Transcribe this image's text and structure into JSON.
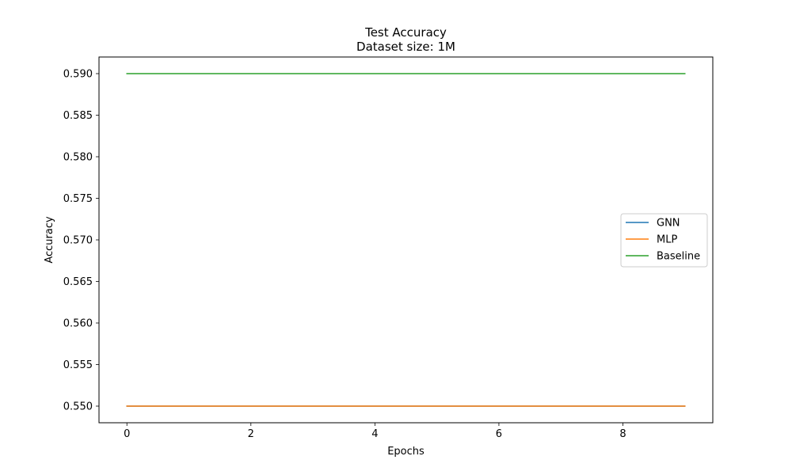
{
  "chart_data": {
    "type": "line",
    "title": "Test Accuracy",
    "subtitle": "Dataset size: 1M",
    "xlabel": "Epochs",
    "ylabel": "Accuracy",
    "xlim": [
      -0.45,
      9.45
    ],
    "ylim": [
      0.548,
      0.592
    ],
    "x_ticks": [
      0,
      2,
      4,
      6,
      8
    ],
    "x_tick_labels": [
      "0",
      "2",
      "4",
      "6",
      "8"
    ],
    "y_ticks": [
      0.55,
      0.555,
      0.56,
      0.565,
      0.57,
      0.575,
      0.58,
      0.585,
      0.59
    ],
    "y_tick_labels": [
      "0.550",
      "0.555",
      "0.560",
      "0.565",
      "0.570",
      "0.575",
      "0.580",
      "0.585",
      "0.590"
    ],
    "grid": false,
    "legend_position": "center-right",
    "x": [
      0,
      1,
      2,
      3,
      4,
      5,
      6,
      7,
      8,
      9
    ],
    "series": [
      {
        "name": "GNN",
        "color": "#1f77b4",
        "values": [
          0.55,
          0.55,
          0.55,
          0.55,
          0.55,
          0.55,
          0.55,
          0.55,
          0.55,
          0.55
        ]
      },
      {
        "name": "MLP",
        "color": "#ff7f0e",
        "values": [
          0.55,
          0.55,
          0.55,
          0.55,
          0.55,
          0.55,
          0.55,
          0.55,
          0.55,
          0.55
        ]
      },
      {
        "name": "Baseline",
        "color": "#2ca02c",
        "values": [
          0.59,
          0.59,
          0.59,
          0.59,
          0.59,
          0.59,
          0.59,
          0.59,
          0.59,
          0.59
        ]
      }
    ]
  }
}
